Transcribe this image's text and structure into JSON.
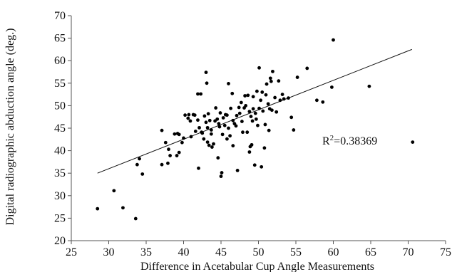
{
  "chart_data": {
    "type": "scatter",
    "title": "",
    "xlabel": "Difference in Acetabular Cup Angle Measurements",
    "ylabel": "Digital radiographic abduction angle (deg.)",
    "xlim": [
      25,
      75
    ],
    "ylim": [
      20,
      70
    ],
    "x_ticks": [
      25,
      30,
      35,
      40,
      45,
      50,
      55,
      60,
      65,
      70,
      75
    ],
    "y_ticks": [
      20,
      25,
      30,
      35,
      40,
      45,
      50,
      55,
      60,
      65,
      70
    ],
    "grid": false,
    "legend": "none",
    "marker_color": "#000000",
    "annotation": {
      "base": "R",
      "superscript": "2",
      "value": "=0.38369"
    },
    "trendline": {
      "x": [
        28.5,
        70.5
      ],
      "y": [
        35.0,
        62.5
      ]
    },
    "series": [
      {
        "points": [
          [
            28.5,
            27.1
          ],
          [
            30.7,
            31.1
          ],
          [
            31.9,
            27.3
          ],
          [
            33.6,
            24.9
          ],
          [
            33.8,
            36.9
          ],
          [
            34.1,
            38.2
          ],
          [
            34.5,
            34.8
          ],
          [
            37.1,
            36.9
          ],
          [
            37.1,
            44.5
          ],
          [
            37.6,
            41.8
          ],
          [
            37.9,
            37.2
          ],
          [
            38.0,
            40.3
          ],
          [
            38.2,
            38.9
          ],
          [
            38.8,
            43.7
          ],
          [
            39.1,
            38.9
          ],
          [
            39.2,
            43.8
          ],
          [
            39.4,
            43.6
          ],
          [
            39.4,
            39.6
          ],
          [
            39.8,
            41.8
          ],
          [
            40.0,
            42.8
          ],
          [
            40.2,
            47.9
          ],
          [
            40.6,
            47.2
          ],
          [
            40.7,
            48.0
          ],
          [
            40.9,
            46.6
          ],
          [
            41.0,
            43.1
          ],
          [
            41.3,
            48.0
          ],
          [
            41.5,
            47.9
          ],
          [
            41.6,
            44.3
          ],
          [
            41.9,
            46.8
          ],
          [
            41.9,
            52.6
          ],
          [
            42.0,
            36.1
          ],
          [
            42.1,
            45.1
          ],
          [
            42.3,
            52.6
          ],
          [
            42.4,
            44.1
          ],
          [
            42.5,
            43.9
          ],
          [
            42.7,
            42.6
          ],
          [
            42.8,
            47.7
          ],
          [
            43.0,
            57.4
          ],
          [
            43.0,
            46.3
          ],
          [
            43.1,
            55.0
          ],
          [
            43.2,
            45.1
          ],
          [
            43.2,
            41.9
          ],
          [
            43.3,
            48.2
          ],
          [
            43.4,
            41.2
          ],
          [
            43.5,
            46.7
          ],
          [
            43.7,
            44.6
          ],
          [
            43.7,
            43.7
          ],
          [
            43.8,
            40.8
          ],
          [
            44.0,
            41.5
          ],
          [
            44.2,
            46.6
          ],
          [
            44.3,
            49.5
          ],
          [
            44.5,
            47.0
          ],
          [
            44.6,
            38.4
          ],
          [
            44.7,
            46.0
          ],
          [
            44.8,
            45.3
          ],
          [
            44.9,
            48.4
          ],
          [
            45.0,
            34.3
          ],
          [
            45.1,
            35.1
          ],
          [
            45.2,
            43.6
          ],
          [
            45.3,
            47.3
          ],
          [
            45.5,
            45.6
          ],
          [
            45.6,
            48.0
          ],
          [
            45.8,
            42.6
          ],
          [
            45.8,
            47.9
          ],
          [
            46.0,
            54.9
          ],
          [
            46.0,
            45.0
          ],
          [
            46.2,
            43.3
          ],
          [
            46.3,
            49.4
          ],
          [
            46.5,
            52.7
          ],
          [
            46.6,
            46.7
          ],
          [
            46.6,
            41.1
          ],
          [
            46.8,
            46.0
          ],
          [
            47.0,
            45.5
          ],
          [
            47.1,
            47.8
          ],
          [
            47.2,
            35.6
          ],
          [
            47.4,
            49.6
          ],
          [
            47.5,
            48.3
          ],
          [
            47.7,
            50.7
          ],
          [
            47.8,
            46.5
          ],
          [
            47.9,
            44.1
          ],
          [
            48.1,
            49.5
          ],
          [
            48.2,
            52.2
          ],
          [
            48.3,
            50.0
          ],
          [
            48.5,
            44.1
          ],
          [
            48.6,
            52.3
          ],
          [
            48.8,
            48.7
          ],
          [
            48.8,
            39.7
          ],
          [
            48.9,
            40.9
          ],
          [
            49.0,
            47.6
          ],
          [
            49.1,
            41.3
          ],
          [
            49.2,
            46.6
          ],
          [
            49.3,
            52.0
          ],
          [
            49.3,
            49.3
          ],
          [
            49.5,
            36.8
          ],
          [
            49.6,
            48.3
          ],
          [
            49.7,
            47.0
          ],
          [
            49.8,
            53.2
          ],
          [
            49.9,
            45.6
          ],
          [
            50.1,
            58.4
          ],
          [
            50.1,
            49.4
          ],
          [
            50.3,
            51.2
          ],
          [
            50.4,
            36.4
          ],
          [
            50.5,
            53.0
          ],
          [
            50.6,
            48.8
          ],
          [
            50.8,
            40.6
          ],
          [
            50.9,
            45.8
          ],
          [
            51.0,
            52.4
          ],
          [
            51.1,
            54.8
          ],
          [
            51.3,
            50.4
          ],
          [
            51.4,
            44.5
          ],
          [
            51.5,
            49.3
          ],
          [
            51.6,
            56.1
          ],
          [
            51.7,
            55.4
          ],
          [
            51.8,
            49.0
          ],
          [
            51.9,
            57.6
          ],
          [
            52.2,
            51.8
          ],
          [
            52.4,
            48.6
          ],
          [
            52.7,
            55.5
          ],
          [
            52.9,
            51.2
          ],
          [
            53.2,
            52.5
          ],
          [
            53.4,
            51.5
          ],
          [
            54.0,
            51.7
          ],
          [
            54.4,
            47.4
          ],
          [
            54.7,
            44.6
          ],
          [
            55.2,
            56.3
          ],
          [
            56.5,
            58.3
          ],
          [
            57.8,
            51.2
          ],
          [
            58.6,
            50.8
          ],
          [
            59.8,
            54.1
          ],
          [
            60.0,
            64.6
          ],
          [
            64.8,
            54.3
          ],
          [
            70.6,
            41.9
          ]
        ]
      }
    ]
  }
}
